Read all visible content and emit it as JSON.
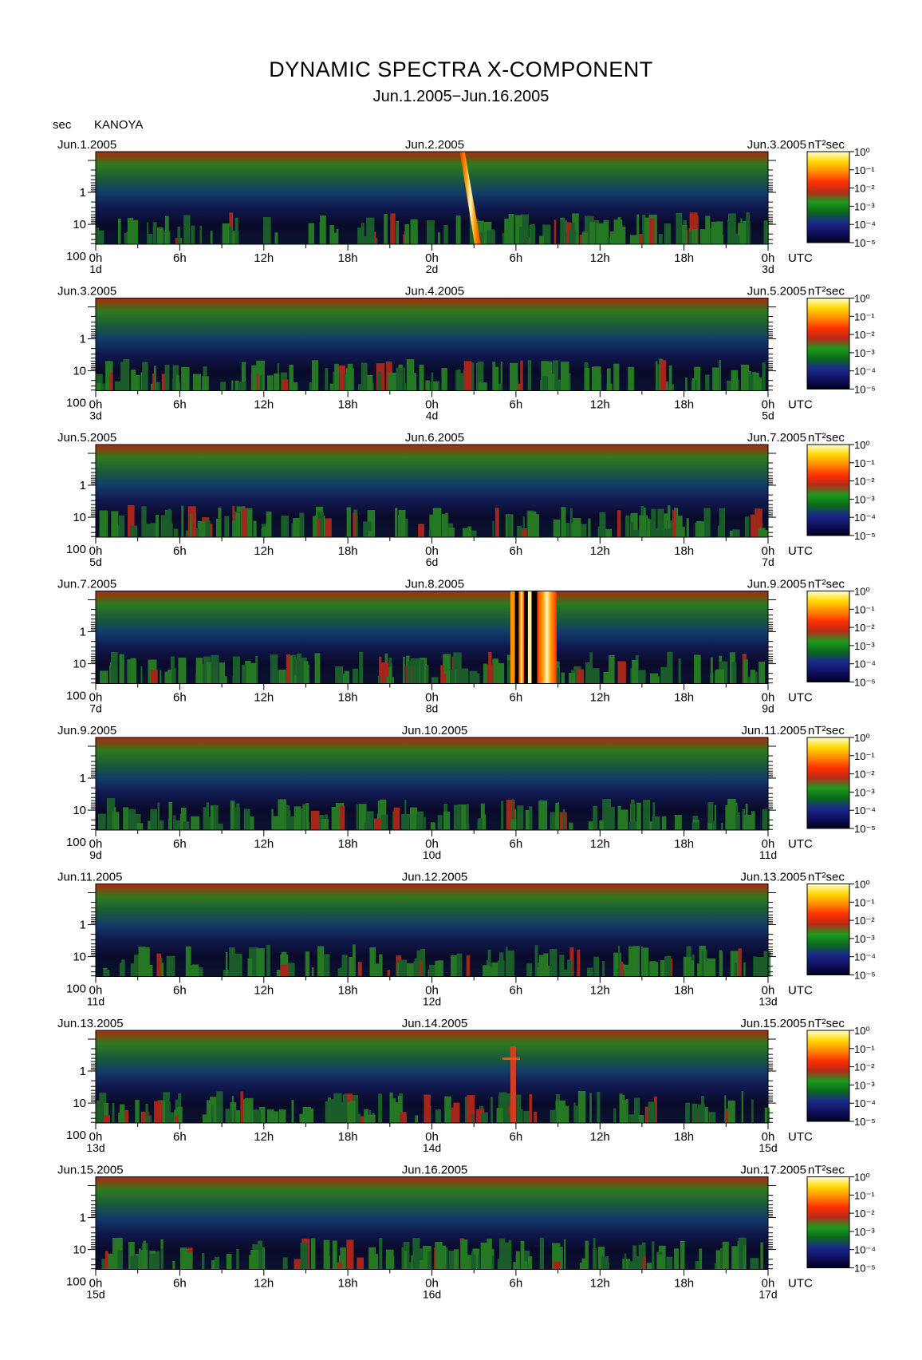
{
  "header": {
    "title": "DYNAMIC SPECTRA X-COMPONENT",
    "subtitle": "Jun.1.2005−Jun.16.2005",
    "y_unit": "sec",
    "station": "KANOYA"
  },
  "chart_data": {
    "type": "heatmap",
    "title": "DYNAMIC SPECTRA X-COMPONENT",
    "subtitle": "Jun.1.2005−Jun.16.2005",
    "ylabel": "sec",
    "y_scale": "log",
    "y_axis_reversed": true,
    "y_ticks": [
      "1",
      "10",
      "100"
    ],
    "x_ticks": [
      "0h",
      "6h",
      "12h",
      "18h",
      "0h",
      "6h",
      "12h",
      "18h",
      "0h"
    ],
    "x_unit": "UTC",
    "colorbar": {
      "label": "nT²sec",
      "ticks": [
        "10⁰",
        "10⁻¹",
        "10⁻²",
        "10⁻³",
        "10⁻⁴",
        "10⁻⁵"
      ],
      "colors": [
        "#000020",
        "#101060",
        "#1a2a8a",
        "#0a6a1a",
        "#1e9a1e",
        "#b82a1a",
        "#ff3000",
        "#ff8a00",
        "#ffd800",
        "#ffffd0"
      ]
    },
    "panels": [
      {
        "date_left": "Jun.1.2005",
        "date_mid": "Jun.2.2005",
        "date_right": "Jun.3.2005",
        "day_left": "1d",
        "day_mid": "2d",
        "day_right": "3d",
        "events": [
          {
            "type": "streak",
            "utc_start": 26,
            "utc_end": 27.5
          }
        ]
      },
      {
        "date_left": "Jun.3.2005",
        "date_mid": "Jun.4.2005",
        "date_right": "Jun.5.2005",
        "day_left": "3d",
        "day_mid": "4d",
        "day_right": "5d",
        "events": []
      },
      {
        "date_left": "Jun.5.2005",
        "date_mid": "Jun.6.2005",
        "date_right": "Jun.7.2005",
        "day_left": "5d",
        "day_mid": "6d",
        "day_right": "7d",
        "events": []
      },
      {
        "date_left": "Jun.7.2005",
        "date_mid": "Jun.8.2005",
        "date_right": "Jun.9.2005",
        "day_left": "7d",
        "day_mid": "8d",
        "day_right": "9d",
        "events": [
          {
            "type": "band",
            "utc_start": 29.6,
            "utc_end": 32.9
          }
        ]
      },
      {
        "date_left": "Jun.9.2005",
        "date_mid": "Jun.10.2005",
        "date_right": "Jun.11.2005",
        "day_left": "9d",
        "day_mid": "10d",
        "day_right": "11d",
        "events": []
      },
      {
        "date_left": "Jun.11.2005",
        "date_mid": "Jun.12.2005",
        "date_right": "Jun.13.2005",
        "day_left": "11d",
        "day_mid": "12d",
        "day_right": "13d",
        "events": []
      },
      {
        "date_left": "Jun.13.2005",
        "date_mid": "Jun.14.2005",
        "date_right": "Jun.15.2005",
        "day_left": "13d",
        "day_mid": "14d",
        "day_right": "15d",
        "events": [
          {
            "type": "spike",
            "utc_start": 29.6,
            "utc_end": 30.0
          }
        ]
      },
      {
        "date_left": "Jun.15.2005",
        "date_mid": "Jun.16.2005",
        "date_right": "Jun.17.2005",
        "day_left": "15d",
        "day_mid": "16d",
        "day_right": "17d",
        "events": []
      }
    ]
  }
}
